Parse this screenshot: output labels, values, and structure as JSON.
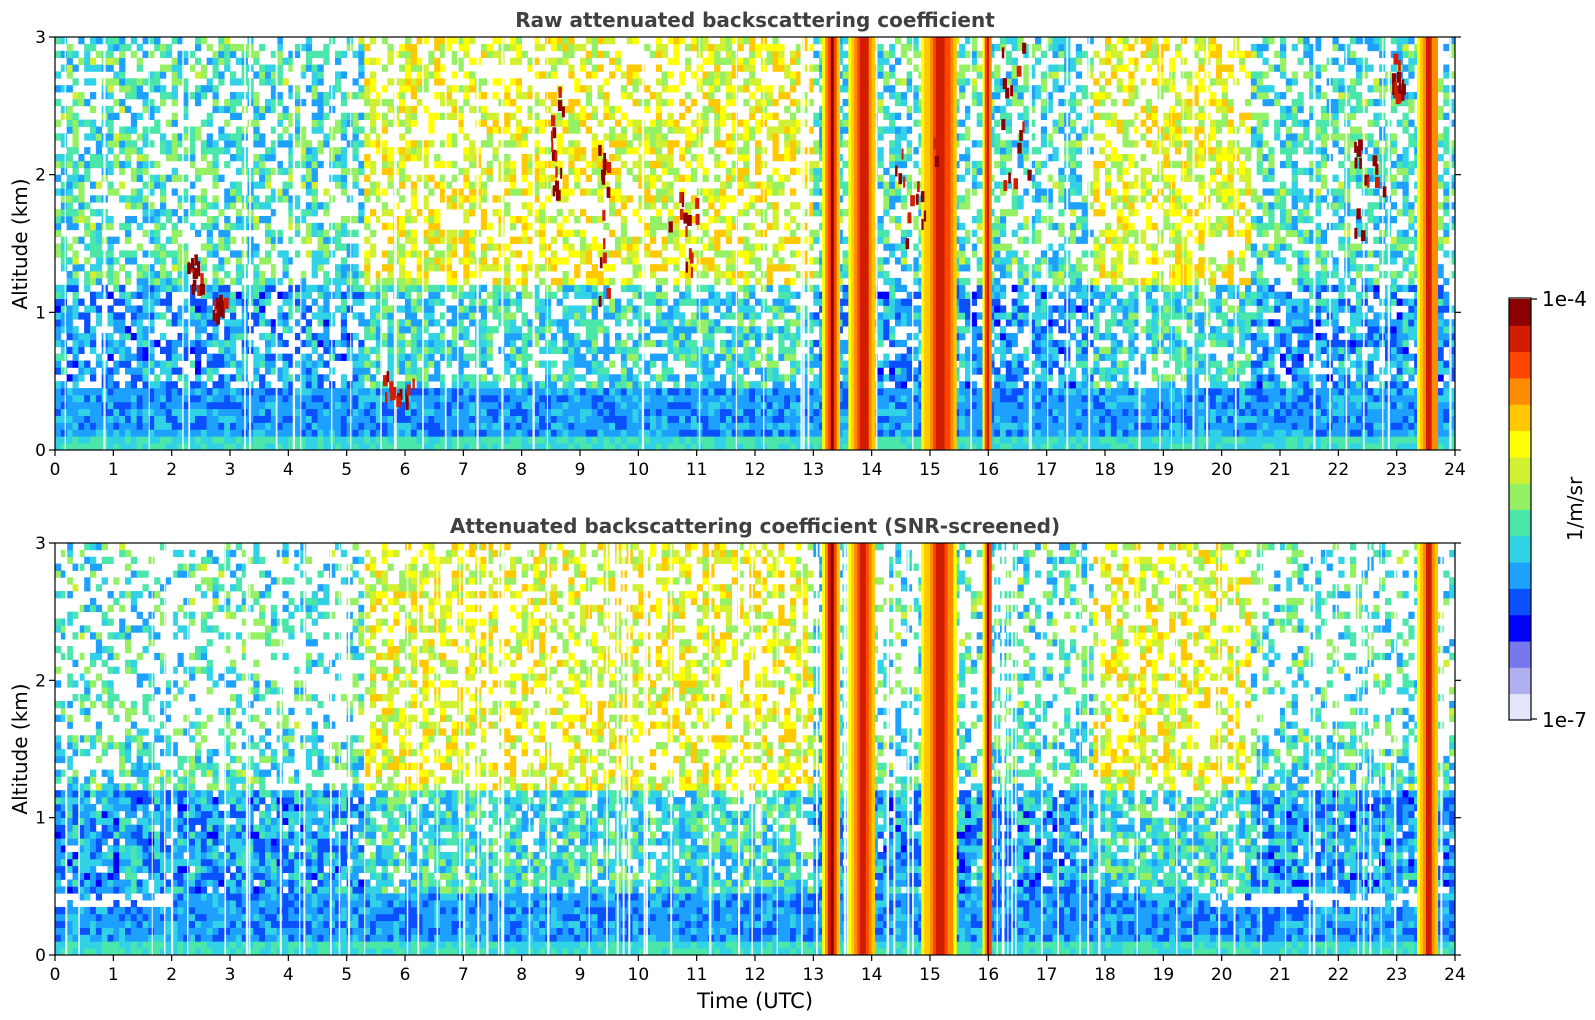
{
  "chart_data": [
    {
      "type": "heatmap",
      "title": "Raw attenuated backscattering coefficient",
      "xlabel": "",
      "ylabel": "Altitude (km)",
      "xlim": [
        0,
        24
      ],
      "ylim": [
        0,
        3
      ],
      "xticks": [
        "0",
        "1",
        "2",
        "3",
        "4",
        "5",
        "6",
        "7",
        "8",
        "9",
        "10",
        "11",
        "12",
        "13",
        "14",
        "15",
        "16",
        "17",
        "18",
        "19",
        "20",
        "21",
        "22",
        "23",
        "24"
      ],
      "yticks": [
        "0",
        "1",
        "2",
        "3"
      ],
      "value_scale": "log",
      "value_range": [
        1e-07,
        0.0001
      ],
      "features": {
        "boundary_layer_top_km": 0.45,
        "noise_level": "high",
        "cloud_columns_utc": [
          [
            13.15,
            13.45
          ],
          [
            13.6,
            14.05
          ],
          [
            14.85,
            15.45
          ],
          [
            15.9,
            16.05
          ],
          [
            23.35,
            23.7
          ]
        ],
        "cloud_patches": [
          {
            "t": [
              2.2,
              2.5
            ],
            "alt": [
              1.1,
              1.35
            ]
          },
          {
            "t": [
              2.7,
              2.9
            ],
            "alt": [
              0.9,
              1.05
            ]
          },
          {
            "t": [
              5.6,
              6.2
            ],
            "alt": [
              0.28,
              0.5
            ]
          },
          {
            "t": [
              8.5,
              8.7
            ],
            "alt": [
              1.8,
              2.6
            ]
          },
          {
            "t": [
              9.3,
              9.5
            ],
            "alt": [
              1.0,
              2.2
            ]
          },
          {
            "t": [
              10.5,
              11.0
            ],
            "alt": [
              1.2,
              1.8
            ]
          },
          {
            "t": [
              14.3,
              15.2
            ],
            "alt": [
              1.4,
              2.2
            ]
          },
          {
            "t": [
              16.2,
              16.8
            ],
            "alt": [
              1.8,
              2.9
            ]
          },
          {
            "t": [
              22.2,
              22.8
            ],
            "alt": [
              1.5,
              2.2
            ]
          },
          {
            "t": [
              22.9,
              23.1
            ],
            "alt": [
              2.5,
              2.8
            ]
          }
        ]
      }
    },
    {
      "type": "heatmap",
      "title": "Attenuated backscattering coefficient (SNR-screened)",
      "xlabel": "Time (UTC)",
      "ylabel": "Altitude (km)",
      "xlim": [
        0,
        24
      ],
      "ylim": [
        0,
        3
      ],
      "xticks": [
        "0",
        "1",
        "2",
        "3",
        "4",
        "5",
        "6",
        "7",
        "8",
        "9",
        "10",
        "11",
        "12",
        "13",
        "14",
        "15",
        "16",
        "17",
        "18",
        "19",
        "20",
        "21",
        "22",
        "23",
        "24"
      ],
      "yticks": [
        "0",
        "1",
        "2",
        "3"
      ],
      "value_scale": "log",
      "value_range": [
        1e-07,
        0.0001
      ],
      "features": {
        "screened_region": "weak signal removed above ~1.5 km and in low-SNR columns",
        "shallow_layer_km": [
          [
            0,
            2.0,
            0.33
          ],
          [
            19.8,
            23.6,
            0.35
          ]
        ],
        "cloud_columns_utc": [
          [
            13.15,
            13.45
          ],
          [
            13.6,
            14.05
          ],
          [
            14.85,
            15.45
          ],
          [
            15.9,
            16.05
          ],
          [
            23.35,
            23.7
          ]
        ]
      }
    }
  ],
  "colorbar": {
    "label": "1/m/sr",
    "max_label": "1e-4",
    "min_label": "1e-7",
    "colors": [
      "#e6e6fa",
      "#b0b0f0",
      "#7878ee",
      "#0000ff",
      "#0a50ff",
      "#1ea0ff",
      "#32d2e6",
      "#4be6aa",
      "#96f064",
      "#d2f032",
      "#ffff00",
      "#ffc800",
      "#ff8c00",
      "#ff4600",
      "#d21e00",
      "#8b0000"
    ]
  }
}
